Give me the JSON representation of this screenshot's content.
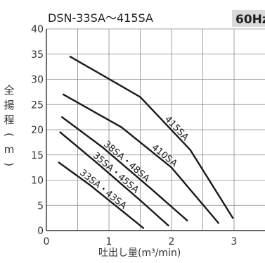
{
  "header": {
    "title": "DSN-33SA〜415SA",
    "frequency": "60Hz"
  },
  "chart_data": {
    "type": "line",
    "xlabel": "吐出し量(m³/min)",
    "ylabel": "全揚程(m)",
    "xlim": [
      0,
      3.25
    ],
    "ylim": [
      0,
      40
    ],
    "x_ticks": [
      0,
      1,
      2,
      3
    ],
    "y_ticks": [
      0,
      5,
      10,
      15,
      20,
      25,
      30,
      35,
      40
    ],
    "grid": true,
    "series": [
      {
        "name": "415SA",
        "x": [
          0.38,
          1.5,
          2.3,
          2.98
        ],
        "y": [
          34.5,
          26.5,
          16.0,
          2.5
        ]
      },
      {
        "name": "410SA",
        "x": [
          0.27,
          1.2,
          2.0,
          2.75
        ],
        "y": [
          27.0,
          20.5,
          12.5,
          1.5
        ]
      },
      {
        "name": "38SA・48SA",
        "x": [
          0.25,
          0.9,
          1.7,
          2.25
        ],
        "y": [
          22.5,
          16.5,
          8.0,
          2.0
        ]
      },
      {
        "name": "35SA・45SA",
        "x": [
          0.22,
          0.8,
          1.5,
          1.95
        ],
        "y": [
          19.5,
          13.5,
          6.0,
          1.0
        ]
      },
      {
        "name": "33SA・43SA",
        "x": [
          0.2,
          0.7,
          1.25,
          1.55
        ],
        "y": [
          13.5,
          9.0,
          3.5,
          0.5
        ]
      }
    ]
  }
}
